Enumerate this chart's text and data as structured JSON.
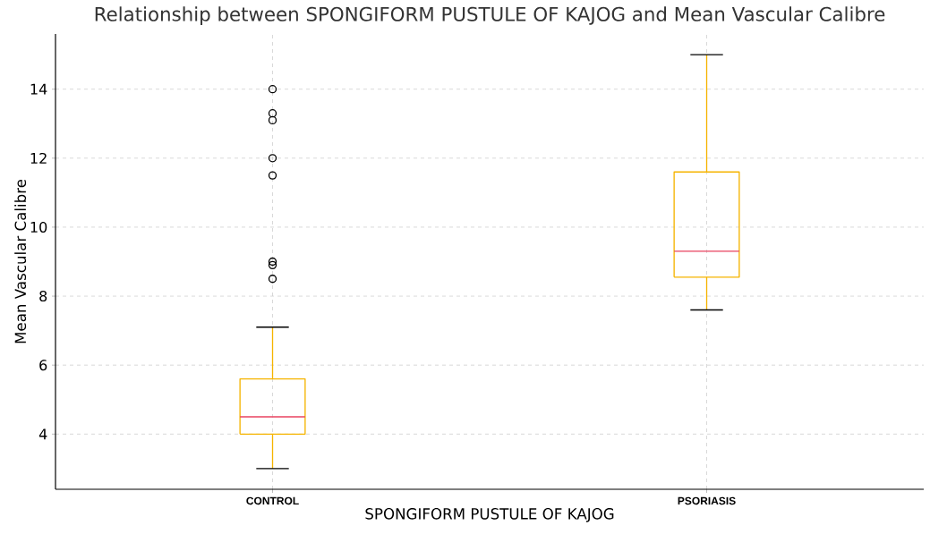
{
  "chart_data": {
    "type": "box",
    "title": "Relationship between SPONGIFORM PUSTULE OF KAJOG and Mean Vascular Calibre",
    "xlabel": "SPONGIFORM PUSTULE OF KAJOG",
    "ylabel": "Mean Vascular Calibre",
    "categories": [
      "CONTROL",
      "PSORIASIS"
    ],
    "boxes": [
      {
        "low": 3.0,
        "q1": 4.0,
        "median": 4.5,
        "q3": 5.6,
        "high": 7.1,
        "outliers": [
          14.0,
          13.3,
          13.1,
          12.0,
          11.5,
          9.0,
          8.9,
          8.5
        ]
      },
      {
        "low": 7.6,
        "q1": 8.55,
        "median": 9.3,
        "q3": 11.6,
        "high": 15.0
      }
    ],
    "color": "#f5b400",
    "ylim": [
      2.4,
      15.6
    ],
    "yticks": [
      4,
      6,
      8,
      10,
      12,
      14
    ],
    "grid": true,
    "marker": "circle"
  }
}
